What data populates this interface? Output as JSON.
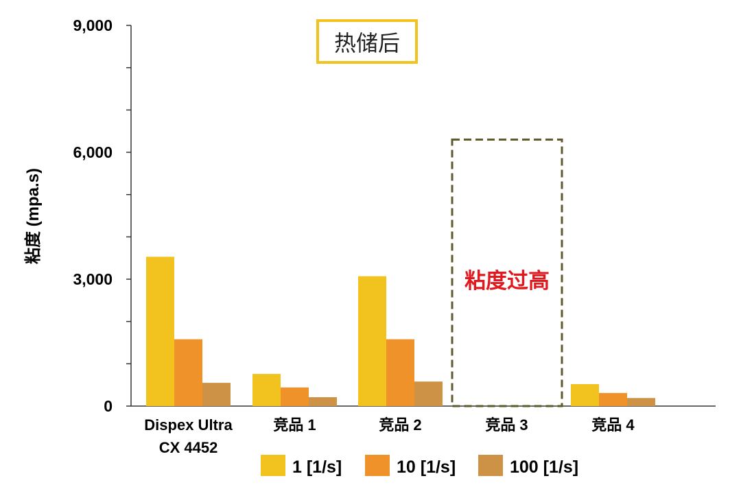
{
  "chart_data": {
    "type": "bar",
    "title": "热储后",
    "ylabel": "粘度 (mpa.s)",
    "xlabel": "",
    "ylim": [
      0,
      9000
    ],
    "yticks": [
      0,
      3000,
      6000,
      9000
    ],
    "ytick_labels": [
      "0",
      "3,000",
      "6,000",
      "9,000"
    ],
    "minor_tick_step": 1000,
    "grid": false,
    "legend_position": "bottom",
    "categories": [
      [
        "Dispex Ultra",
        "CX 4452"
      ],
      [
        "竞品 1"
      ],
      [
        "竞品 2"
      ],
      [
        "竞品 3"
      ],
      [
        "竞品 4"
      ]
    ],
    "series": [
      {
        "name": "1 [1/s]",
        "color": "#f2c31f",
        "values": [
          3530,
          760,
          3070,
          null,
          520
        ]
      },
      {
        "name": "10 [1/s]",
        "color": "#ef922a",
        "values": [
          1580,
          440,
          1580,
          null,
          310
        ]
      },
      {
        "name": "100 [1/s]",
        "color": "#cd9246",
        "values": [
          550,
          210,
          580,
          null,
          190
        ]
      }
    ],
    "annotation": {
      "text": "粘度过高",
      "category_index": 3,
      "box_top_value": 6300,
      "box_color": "#5f5a2c",
      "text_color": "#e0191f"
    },
    "title_box_color": "#f2c31f"
  }
}
